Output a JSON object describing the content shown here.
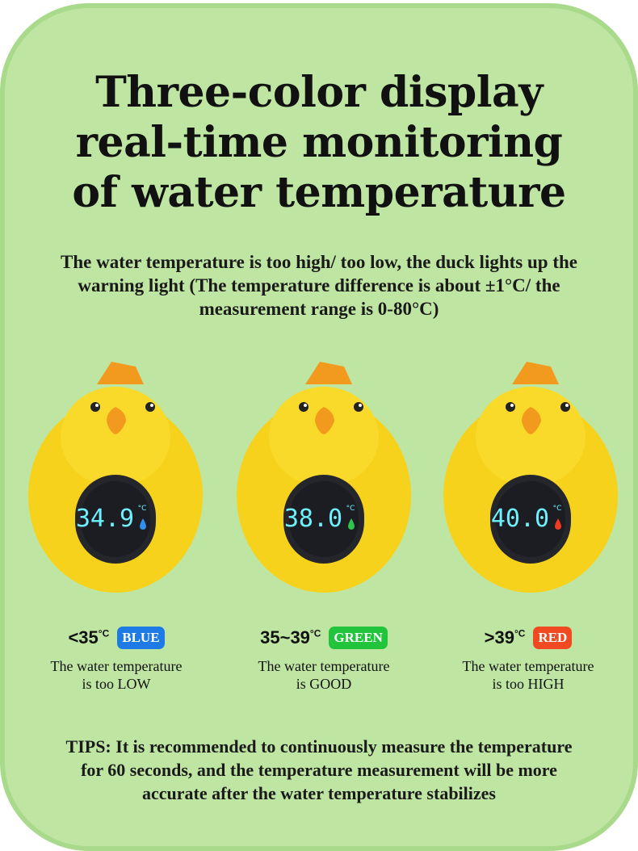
{
  "title": {
    "line1": "Three-color display",
    "line2": "real-time monitoring",
    "line3": "of water temperature"
  },
  "subtitle": "The water temperature is too high/ too low, the duck lights up the warning light (The temperature difference is about ±1°C/ the measurement range is 0-80°C)",
  "ducks": [
    {
      "reading": "34.9",
      "unit": "°C",
      "drop_color": "#2f8ef0"
    },
    {
      "reading": "38.0",
      "unit": "°C",
      "drop_color": "#2cc64a"
    },
    {
      "reading": "40.0",
      "unit": "°C",
      "drop_color": "#ee3a22"
    }
  ],
  "ranges": [
    {
      "range": "<35",
      "unit": "°C",
      "badge": "BLUE",
      "badge_color": "#1e7be6",
      "desc_line1": "The water temperature",
      "desc_line2": "is too LOW"
    },
    {
      "range": "35~39",
      "unit": "°C",
      "badge": "GREEN",
      "badge_color": "#22c43b",
      "desc_line1": "The water temperature",
      "desc_line2": "is GOOD"
    },
    {
      "range": ">39",
      "unit": "°C",
      "badge": "RED",
      "badge_color": "#f04a22",
      "desc_line1": "The water temperature",
      "desc_line2": "is too HIGH"
    }
  ],
  "tips": "TIPS: It is recommended to continuously measure the temperature for 60 seconds, and the temperature measurement will be more accurate after the water temperature stabilizes",
  "colors": {
    "background": "#bfe5a3",
    "duck_yellow": "#f6d21c",
    "beak": "#f29a1e",
    "screen": "#1b1d22",
    "digits": "#6ff0ff"
  }
}
